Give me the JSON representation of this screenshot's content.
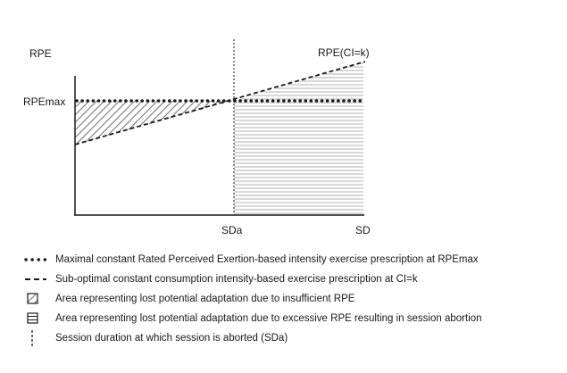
{
  "labels": {
    "y_axis": "RPE",
    "rpe_max": "RPEmax",
    "line_label": "RPE(CI=k)",
    "x_sda": "SDa",
    "x_sd": "SD"
  },
  "legend": [
    {
      "symbol": "dotted-line-icon",
      "text": "Maximal constant Rated Perceived Exertion-based intensity exercise prescription at RPEmax"
    },
    {
      "symbol": "dashed-line-icon",
      "text": "Sub-optimal constant consumption intensity-based exercise prescription at CI=k"
    },
    {
      "symbol": "diagonal-hatch-icon",
      "text": "Area representing lost potential adaptation due to insufficient RPE"
    },
    {
      "symbol": "horizontal-hatch-icon",
      "text": "Area representing lost potential adaptation due to excessive RPE resulting in session abortion"
    },
    {
      "symbol": "vertical-dash-icon",
      "text": "Session duration at which session is aborted (SDa)"
    }
  ],
  "colors": {
    "ink": "#1a1a1a",
    "hatch": "#7a7a7a",
    "hline": "#b0b0b0",
    "background": "#ffffff"
  }
}
